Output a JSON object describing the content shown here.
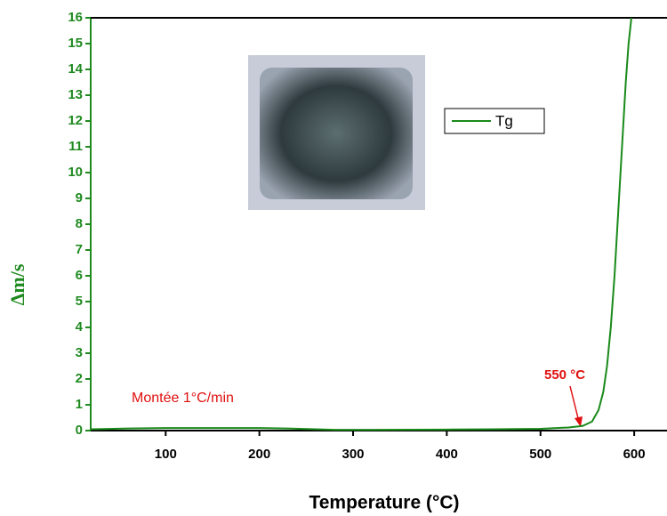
{
  "chart_data": {
    "type": "line",
    "xlabel": "Temperature (°C)",
    "ylabel": "Δm/s",
    "x": [
      20,
      60,
      100,
      150,
      200,
      230,
      260,
      280,
      320,
      400,
      450,
      500,
      530,
      545,
      555,
      562,
      567,
      571,
      575,
      579,
      583,
      587,
      591,
      594,
      597
    ],
    "series": [
      {
        "name": "Tg",
        "color": "#1a8a1a",
        "values": [
          0.05,
          0.08,
          0.1,
          0.1,
          0.1,
          0.08,
          0.05,
          0.03,
          0.03,
          0.04,
          0.05,
          0.07,
          0.12,
          0.18,
          0.35,
          0.8,
          1.5,
          2.5,
          4,
          6,
          8.5,
          11,
          13.5,
          15,
          16
        ]
      }
    ],
    "xlim": [
      20,
      635
    ],
    "ylim": [
      0,
      16
    ],
    "xticks": [
      100,
      200,
      300,
      400,
      500,
      600
    ],
    "yticks": [
      0,
      1,
      2,
      3,
      4,
      5,
      6,
      7,
      8,
      9,
      10,
      11,
      12,
      13,
      14,
      15,
      16
    ],
    "annotations": [
      "Montée 1°C/min",
      "550 °C"
    ]
  }
}
